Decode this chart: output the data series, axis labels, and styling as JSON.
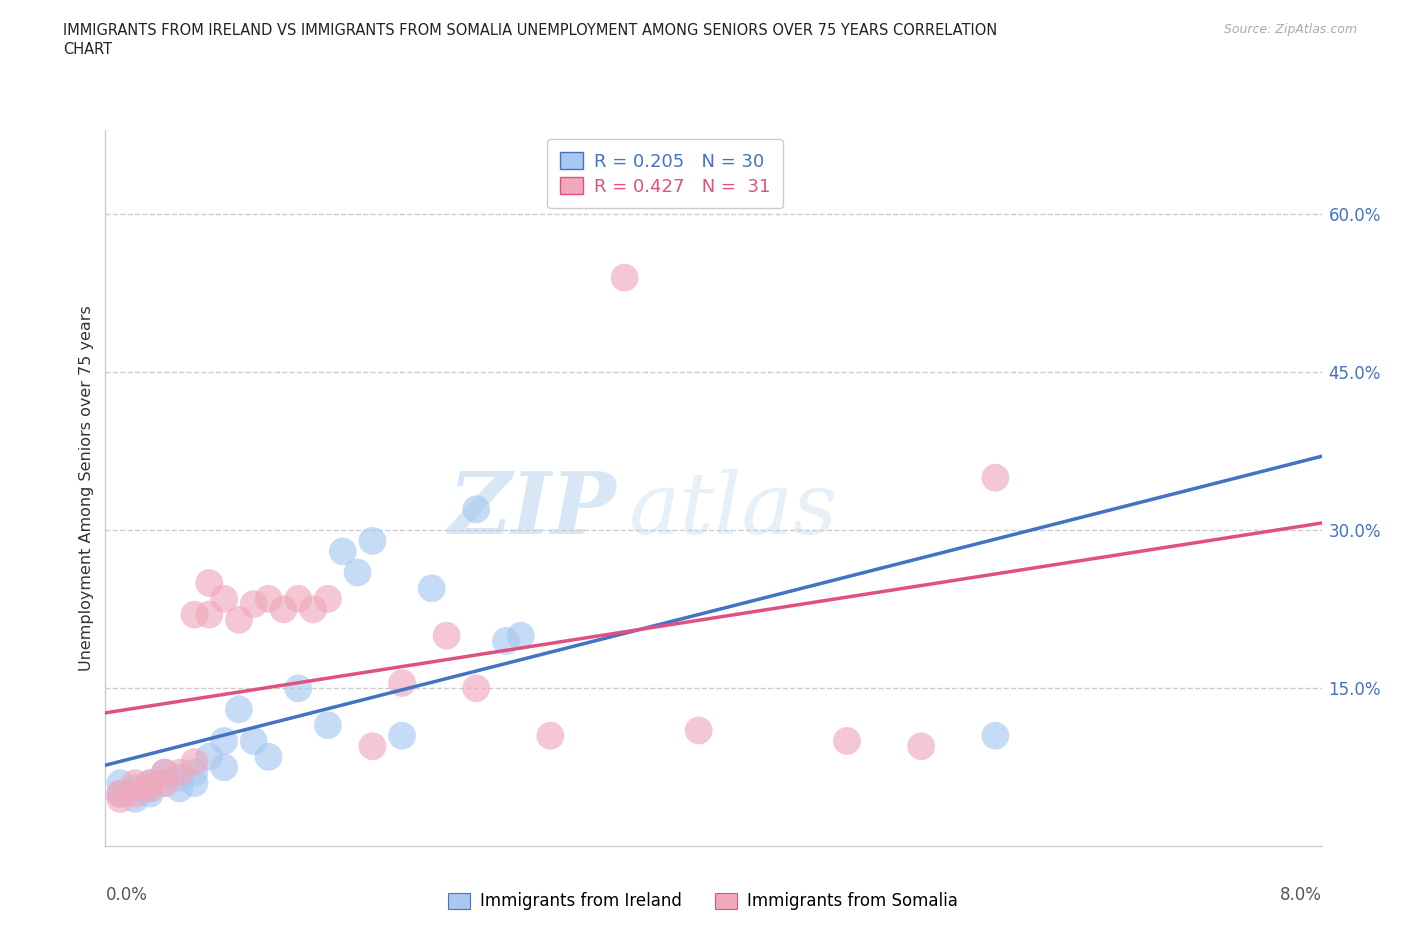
{
  "title_line1": "IMMIGRANTS FROM IRELAND VS IMMIGRANTS FROM SOMALIA UNEMPLOYMENT AMONG SENIORS OVER 75 YEARS CORRELATION",
  "title_line2": "CHART",
  "source": "Source: ZipAtlas.com",
  "ylabel": "Unemployment Among Seniors over 75 years",
  "ytick_labels": [
    "15.0%",
    "30.0%",
    "45.0%",
    "60.0%"
  ],
  "ytick_values": [
    0.15,
    0.3,
    0.45,
    0.6
  ],
  "xlim": [
    0.0,
    0.082
  ],
  "ylim": [
    0.0,
    0.68
  ],
  "y_axis_bottom_pad": -0.01,
  "ireland_R": 0.205,
  "ireland_N": 30,
  "somalia_R": 0.427,
  "somalia_N": 31,
  "ireland_color": "#a8c8f0",
  "somalia_color": "#f0a8bc",
  "ireland_line_color": "#4472c4",
  "somalia_line_color": "#e05080",
  "ireland_scatter_x": [
    0.001,
    0.001,
    0.002,
    0.002,
    0.003,
    0.003,
    0.003,
    0.004,
    0.004,
    0.005,
    0.005,
    0.006,
    0.006,
    0.007,
    0.008,
    0.008,
    0.009,
    0.01,
    0.011,
    0.013,
    0.015,
    0.016,
    0.017,
    0.018,
    0.02,
    0.022,
    0.025,
    0.027,
    0.028,
    0.06
  ],
  "ireland_scatter_y": [
    0.05,
    0.06,
    0.045,
    0.055,
    0.06,
    0.055,
    0.05,
    0.07,
    0.06,
    0.065,
    0.055,
    0.06,
    0.07,
    0.085,
    0.075,
    0.1,
    0.13,
    0.1,
    0.085,
    0.15,
    0.115,
    0.28,
    0.26,
    0.29,
    0.105,
    0.245,
    0.32,
    0.195,
    0.2,
    0.105
  ],
  "somalia_scatter_x": [
    0.001,
    0.001,
    0.002,
    0.002,
    0.003,
    0.003,
    0.004,
    0.004,
    0.005,
    0.006,
    0.006,
    0.007,
    0.007,
    0.008,
    0.009,
    0.01,
    0.011,
    0.012,
    0.013,
    0.014,
    0.015,
    0.018,
    0.02,
    0.023,
    0.025,
    0.03,
    0.04,
    0.05,
    0.055,
    0.06,
    0.035
  ],
  "somalia_scatter_y": [
    0.045,
    0.05,
    0.05,
    0.06,
    0.06,
    0.055,
    0.06,
    0.07,
    0.07,
    0.08,
    0.22,
    0.22,
    0.25,
    0.235,
    0.215,
    0.23,
    0.235,
    0.225,
    0.235,
    0.225,
    0.235,
    0.095,
    0.155,
    0.2,
    0.15,
    0.105,
    0.11,
    0.1,
    0.095,
    0.35,
    0.54
  ],
  "watermark_zip": "ZIP",
  "watermark_atlas": "atlas",
  "background_color": "#ffffff",
  "grid_color": "#cccccc",
  "tick_color": "#aaaaaa",
  "label_color": "#333333",
  "source_color": "#aaaaaa",
  "legend_edge_color": "#cccccc",
  "spine_color": "#cccccc"
}
